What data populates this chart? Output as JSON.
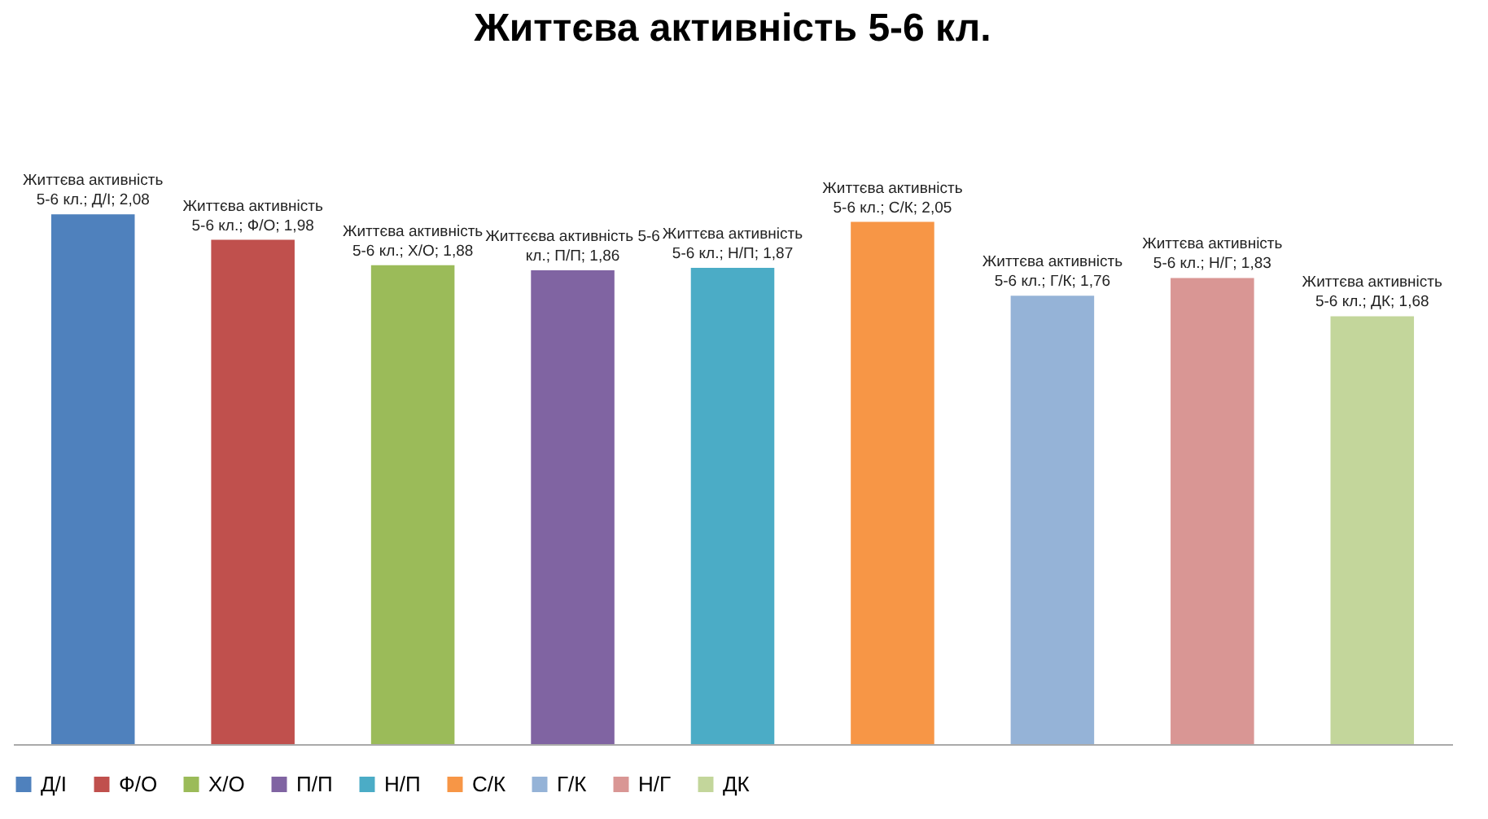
{
  "chart_data": {
    "type": "bar",
    "title": "Життєва активність 5-6 кл.",
    "categories": [
      null,
      null,
      null,
      null,
      null,
      null,
      null,
      null,
      null
    ],
    "series": [
      {
        "name": "Д/І",
        "color": "#4f81bd",
        "values": [
          2.08,
          null,
          null,
          null,
          null,
          null,
          null,
          null,
          null
        ],
        "value_labels": [
          "Життєва активність\n5-6 кл.; Д/І; 2,08",
          null,
          null,
          null,
          null,
          null,
          null,
          null,
          null
        ]
      },
      {
        "name": "Ф/О",
        "color": "#c0504d",
        "values": [
          null,
          1.98,
          null,
          null,
          null,
          null,
          null,
          null,
          null
        ],
        "value_labels": [
          null,
          "Життєва активність\n5-6 кл.; Ф/О; 1,98",
          null,
          null,
          null,
          null,
          null,
          null,
          null
        ]
      },
      {
        "name": "Х/О",
        "color": "#9bbb59",
        "values": [
          null,
          null,
          1.88,
          null,
          null,
          null,
          null,
          null,
          null
        ],
        "value_labels": [
          null,
          null,
          "Життєва активність\n5-6 кл.; Х/О; 1,88",
          null,
          null,
          null,
          null,
          null,
          null
        ]
      },
      {
        "name": "П/П",
        "color": "#8064a2",
        "values": [
          null,
          null,
          null,
          1.86,
          null,
          null,
          null,
          null,
          null
        ],
        "value_labels": [
          null,
          null,
          null,
          "Життєєва активність 5-6\nкл.; П/П; 1,86",
          null,
          null,
          null,
          null,
          null
        ]
      },
      {
        "name": "Н/П",
        "color": "#4bacc6",
        "values": [
          null,
          null,
          null,
          null,
          1.87,
          null,
          null,
          null,
          null
        ],
        "value_labels": [
          null,
          null,
          null,
          null,
          "Життєва активність\n5-6 кл.; Н/П; 1,87",
          null,
          null,
          null,
          null
        ]
      },
      {
        "name": "С/К",
        "color": "#f79646",
        "values": [
          null,
          null,
          null,
          null,
          null,
          2.05,
          null,
          null,
          null
        ],
        "value_labels": [
          null,
          null,
          null,
          null,
          null,
          "Життєва активність\n5-6 кл.; С/К; 2,05",
          null,
          null,
          null
        ]
      },
      {
        "name": "Г/К",
        "color": "#95b3d7",
        "values": [
          null,
          null,
          null,
          null,
          null,
          null,
          1.76,
          null,
          null
        ],
        "value_labels": [
          null,
          null,
          null,
          null,
          null,
          null,
          "Життєва активність\n5-6 кл.; Г/К; 1,76",
          null,
          null
        ]
      },
      {
        "name": "Н/Г",
        "color": "#d99694",
        "values": [
          null,
          null,
          null,
          null,
          null,
          null,
          null,
          1.83,
          null
        ],
        "value_labels": [
          null,
          null,
          null,
          null,
          null,
          null,
          null,
          "Життєва активність\n5-6 кл.; Н/Г; 1,83",
          null
        ]
      },
      {
        "name": "ДК",
        "color": "#c3d69b",
        "values": [
          null,
          null,
          null,
          null,
          null,
          null,
          null,
          null,
          1.68
        ],
        "value_labels": [
          null,
          null,
          null,
          null,
          null,
          null,
          null,
          null,
          "Життєва активність\n5-6 кл.; ДК; 1,68"
        ]
      }
    ],
    "stacked": true,
    "legend": "bottom",
    "tick_labels": false
  }
}
